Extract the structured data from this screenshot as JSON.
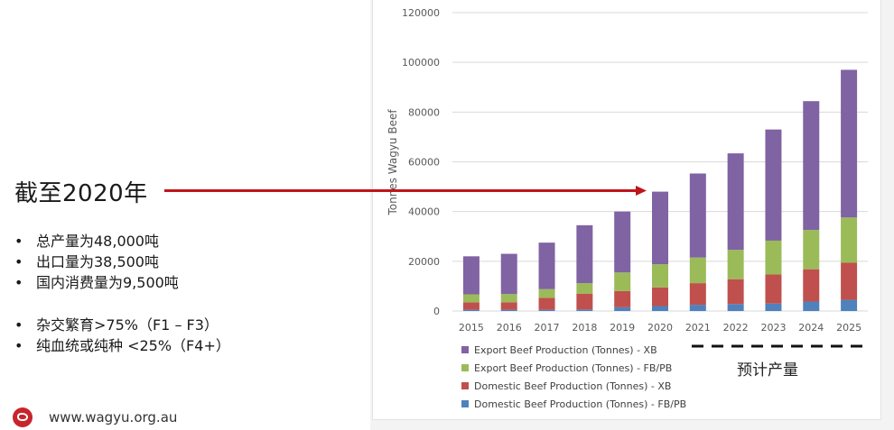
{
  "headline": "截至2020年",
  "bullets_group_1": [
    "总产量为48,000吨",
    "出口量为38,500吨",
    "国内消费量为9,500吨"
  ],
  "bullets_group_2": [
    "杂交繁育>75%（F1 – F3）",
    "纯血统或纯种 <25%（F4+）"
  ],
  "footer": {
    "url": "www.wagyu.org.au"
  },
  "forecast_label": "预计产量",
  "colors": {
    "export_xb": "#8063a3",
    "export_fbpb": "#9bbb59",
    "domestic_xb": "#c0504d",
    "domestic_fbpb": "#4f81bd",
    "arrow": "#c0141b"
  },
  "chart_data": {
    "type": "bar",
    "stacked": true,
    "categories": [
      "2015",
      "2016",
      "2017",
      "2018",
      "2019",
      "2020",
      "2021",
      "2022",
      "2023",
      "2024",
      "2025"
    ],
    "series": [
      {
        "name": "Domestic Beef Production (Tonnes) - FB/PB",
        "color": "#4f81bd",
        "values": [
          500,
          500,
          500,
          600,
          1500,
          2000,
          2500,
          2800,
          3000,
          3800,
          4500
        ]
      },
      {
        "name": "Domestic Beef Production (Tonnes) - XB",
        "color": "#c0504d",
        "values": [
          3000,
          3000,
          4800,
          6400,
          6500,
          7500,
          8700,
          10000,
          11700,
          13000,
          14900
        ]
      },
      {
        "name": "Export Beef Production (Tonnes) - FB/PB",
        "color": "#9bbb59",
        "values": [
          3200,
          3300,
          3500,
          4200,
          7500,
          9300,
          10300,
          11800,
          13600,
          15800,
          18200
        ]
      },
      {
        "name": "Export Beef Production (Tonnes) - XB",
        "color": "#8063a3",
        "values": [
          15300,
          16200,
          18700,
          23300,
          24500,
          29200,
          33800,
          38800,
          44700,
          51800,
          59400
        ]
      }
    ],
    "legend_order": [
      "Export Beef Production (Tonnes) - XB",
      "Export Beef Production (Tonnes) - FB/PB",
      "Domestic Beef Production (Tonnes) - XB",
      "Domestic Beef Production (Tonnes) - FB/PB"
    ],
    "yticks": [
      "0",
      "20000",
      "40000",
      "60000",
      "80000",
      "100000",
      "120000"
    ],
    "ylabel": "Tonnes Wagyu Beef",
    "xlabel": "",
    "ylim": [
      0,
      120000
    ],
    "grid": true,
    "legend_position": "bottom"
  }
}
